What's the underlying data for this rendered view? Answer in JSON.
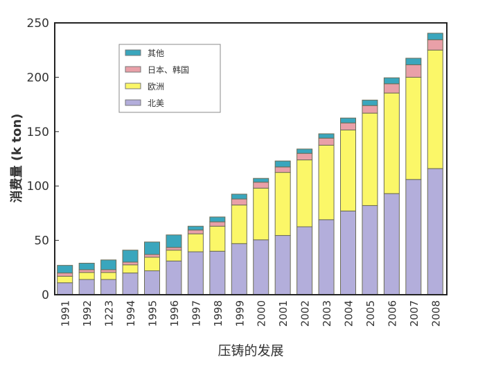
{
  "chart_data": {
    "type": "bar",
    "stacked": true,
    "title": "",
    "xlabel": "压铸的发展",
    "ylabel": "消费量 (k ton)",
    "ylim": [
      0,
      250
    ],
    "yticks": [
      0,
      50,
      100,
      150,
      200,
      250
    ],
    "grid": false,
    "legend_position": "top-left",
    "categories": [
      "1991",
      "1992",
      "1223",
      "1994",
      "1995",
      "1996",
      "1997",
      "1998",
      "1999",
      "2000",
      "2001",
      "2002",
      "2003",
      "2004",
      "2005",
      "2006",
      "2007",
      "2008"
    ],
    "series": [
      {
        "name": "北美",
        "color": "#b3aedb",
        "values": [
          11,
          14,
          14,
          20,
          22,
          31,
          39.5,
          40,
          47,
          50.5,
          54.5,
          62.5,
          69,
          77,
          82,
          93,
          106,
          116
        ]
      },
      {
        "name": "欧洲",
        "color": "#fbf768",
        "values": [
          6,
          6.5,
          6.5,
          7.5,
          12.5,
          10,
          16.5,
          23,
          35.5,
          47.5,
          58,
          61.5,
          68.5,
          74.5,
          85,
          92.5,
          94,
          109
        ]
      },
      {
        "name": "日本、韩国",
        "color": "#e9a0a8",
        "values": [
          3,
          2.5,
          2.5,
          2.5,
          2.5,
          2.5,
          3.5,
          4,
          5.5,
          5.5,
          5,
          6,
          6.5,
          6.5,
          7,
          8.5,
          11.5,
          9.5
        ]
      },
      {
        "name": "其他",
        "color": "#3aa6bd",
        "values": [
          7,
          6,
          9,
          11,
          11.5,
          11.5,
          3.5,
          4.5,
          4.5,
          3.5,
          5.5,
          4,
          4,
          4.5,
          5,
          5.5,
          6,
          6
        ]
      }
    ],
    "legend_order": [
      "其他",
      "日本、韩国",
      "欧洲",
      "北美"
    ]
  }
}
